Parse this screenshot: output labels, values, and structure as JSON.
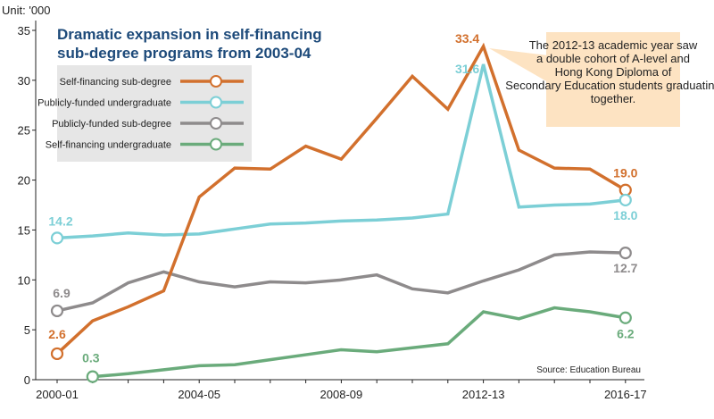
{
  "unit_label": "Unit: '000",
  "source": "Source: Education Bureau",
  "colors": {
    "Self-financing sub-degree": "#d2702d",
    "Publicly-funded undergraduate": "#7ccfd6",
    "Publicly-funded sub-degree": "#8e8b8c",
    "Self-financing undergraduate": "#6aab7b"
  },
  "chart_data": {
    "type": "line",
    "title": "Dramatic expansion in self-financing sub-degree programs from 2003-04",
    "xlabel": "",
    "ylabel": "",
    "ylim": [
      0,
      35
    ],
    "yticks": [
      0,
      5,
      10,
      15,
      20,
      25,
      30,
      35
    ],
    "grid": false,
    "legend": "top-left",
    "x": [
      "2000-01",
      "2001-02",
      "2002-03",
      "2003-04",
      "2004-05",
      "2005-06",
      "2006-07",
      "2007-08",
      "2008-09",
      "2009-10",
      "2010-11",
      "2011-12",
      "2012-13",
      "2013-14",
      "2014-15",
      "2015-16",
      "2016-17"
    ],
    "xticks": [
      "2000-01",
      "2004-05",
      "2008-09",
      "2012-13",
      "2016-17"
    ],
    "series": [
      {
        "name": "Self-financing sub-degree",
        "values": [
          2.6,
          5.9,
          7.3,
          8.9,
          18.3,
          21.2,
          21.1,
          23.4,
          22.1,
          26.2,
          30.4,
          27.1,
          33.4,
          23.0,
          21.2,
          21.1,
          19.0
        ]
      },
      {
        "name": "Publicly-funded undergraduate",
        "values": [
          14.2,
          14.4,
          14.7,
          14.5,
          14.6,
          15.1,
          15.6,
          15.7,
          15.9,
          16.0,
          16.2,
          16.6,
          31.6,
          17.3,
          17.5,
          17.6,
          18.0
        ]
      },
      {
        "name": "Publicly-funded sub-degree",
        "values": [
          6.9,
          7.7,
          9.7,
          10.8,
          9.8,
          9.3,
          9.8,
          9.7,
          10.0,
          10.5,
          9.1,
          8.7,
          9.9,
          11.0,
          12.5,
          12.8,
          12.7
        ]
      },
      {
        "name": "Self-financing undergraduate",
        "values": [
          null,
          0.3,
          0.6,
          1.0,
          1.4,
          1.5,
          2.0,
          2.5,
          3.0,
          2.8,
          3.2,
          3.6,
          6.8,
          6.1,
          7.2,
          6.8,
          6.2
        ]
      }
    ],
    "data_labels": [
      {
        "series": "Self-financing sub-degree",
        "x": "2000-01",
        "text": "2.6"
      },
      {
        "series": "Self-financing sub-degree",
        "x": "2012-13",
        "text": "33.4"
      },
      {
        "series": "Self-financing sub-degree",
        "x": "2016-17",
        "text": "19.0"
      },
      {
        "series": "Publicly-funded undergraduate",
        "x": "2000-01",
        "text": "14.2"
      },
      {
        "series": "Publicly-funded undergraduate",
        "x": "2012-13",
        "text": "31.6"
      },
      {
        "series": "Publicly-funded undergraduate",
        "x": "2016-17",
        "text": "18.0"
      },
      {
        "series": "Publicly-funded sub-degree",
        "x": "2000-01",
        "text": "6.9"
      },
      {
        "series": "Publicly-funded sub-degree",
        "x": "2016-17",
        "text": "12.7"
      },
      {
        "series": "Self-financing undergraduate",
        "x": "2001-02",
        "text": "0.3"
      },
      {
        "series": "Self-financing undergraduate",
        "x": "2016-17",
        "text": "6.2"
      }
    ],
    "annotation": "The 2012-13 academic year saw a double cohort of A-level and Hong Kong Diploma of Secondary Education students graduating together."
  }
}
